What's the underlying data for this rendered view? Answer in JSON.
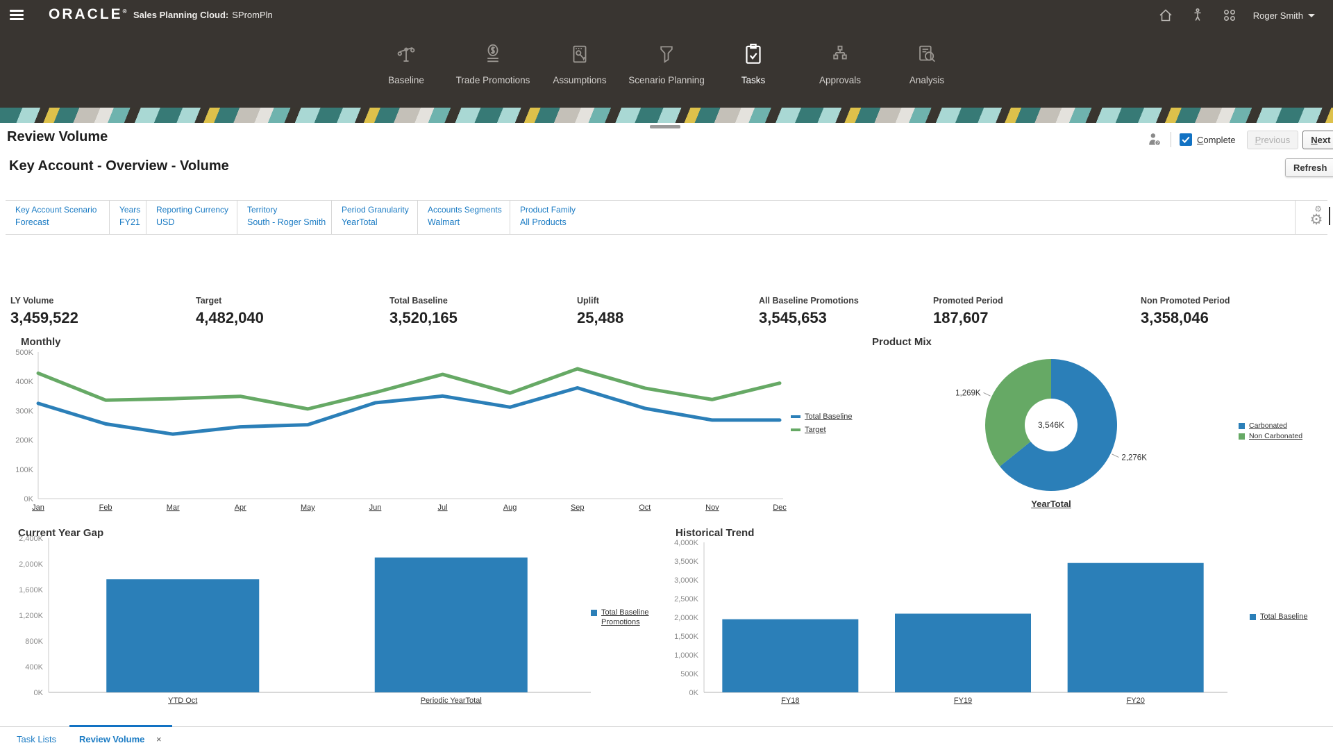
{
  "topbar": {
    "brand": "ORACLE",
    "brand_mark": "®",
    "title_bold": "Sales Planning Cloud:",
    "title_app": "SPromPln",
    "user": "Roger Smith"
  },
  "nav": {
    "items": [
      {
        "label": "Baseline",
        "icon": "baseline-icon",
        "active": false
      },
      {
        "label": "Trade Promotions",
        "icon": "trade-promotions-icon",
        "active": false
      },
      {
        "label": "Assumptions",
        "icon": "assumptions-icon",
        "active": false
      },
      {
        "label": "Scenario Planning",
        "icon": "scenario-planning-icon",
        "active": false
      },
      {
        "label": "Tasks",
        "icon": "tasks-icon",
        "active": true
      },
      {
        "label": "Approvals",
        "icon": "approvals-icon",
        "active": false
      },
      {
        "label": "Analysis",
        "icon": "analysis-icon",
        "active": false
      }
    ]
  },
  "header": {
    "title": "Review Volume",
    "complete_label": "Complete",
    "complete_checked": true,
    "previous_label": "Previous",
    "next_label": "Next"
  },
  "subheader": {
    "title": "Key Account - Overview - Volume",
    "refresh_label": "Refresh"
  },
  "pov": {
    "filters": [
      {
        "label": "Key Account Scenario",
        "value": "Forecast"
      },
      {
        "label": "Years",
        "value": "FY21"
      },
      {
        "label": "Reporting Currency",
        "value": "USD"
      },
      {
        "label": "Territory",
        "value": "South - Roger Smith"
      },
      {
        "label": "Period Granularity",
        "value": "YearTotal"
      },
      {
        "label": "Accounts Segments",
        "value": "Walmart"
      },
      {
        "label": "Product Family",
        "value": "All Products"
      }
    ],
    "gear_icon": "settings-gear-icon"
  },
  "kpis": [
    {
      "label": "LY Volume",
      "value": "3,459,522"
    },
    {
      "label": "Target",
      "value": "4,482,040"
    },
    {
      "label": "Total Baseline",
      "value": "3,520,165"
    },
    {
      "label": "Uplift",
      "value": "25,488"
    },
    {
      "label": "All Baseline Promotions",
      "value": "3,545,653"
    },
    {
      "label": "Promoted Period",
      "value": "187,607"
    },
    {
      "label": "Non Promoted Period",
      "value": "3,358,046"
    }
  ],
  "chart_data": [
    {
      "id": "monthly",
      "type": "line",
      "title": "Monthly",
      "categories": [
        "Jan",
        "Feb",
        "Mar",
        "Apr",
        "May",
        "Jun",
        "Jul",
        "Aug",
        "Sep",
        "Oct",
        "Nov",
        "Dec"
      ],
      "series": [
        {
          "name": "Total Baseline",
          "color": "#2b7fb8",
          "values": [
            325,
            255,
            220,
            245,
            252,
            327,
            350,
            312,
            378,
            308,
            268,
            268
          ]
        },
        {
          "name": "Target",
          "color": "#66a965",
          "values": [
            428,
            336,
            341,
            349,
            306,
            362,
            424,
            360,
            443,
            377,
            338,
            394
          ]
        }
      ],
      "unit": "K",
      "ylim": [
        0,
        500
      ],
      "yticks": [
        0,
        100,
        200,
        300,
        400,
        500
      ],
      "grid": false,
      "legend_position": "right"
    },
    {
      "id": "product-mix",
      "type": "pie",
      "donut": true,
      "title": "Product Mix",
      "slices": [
        {
          "name": "Carbonated",
          "value": 2276,
          "label": "2,276K",
          "color": "#2b7fb8"
        },
        {
          "name": "Non Carbonated",
          "value": 1269,
          "label": "1,269K",
          "color": "#66a965"
        }
      ],
      "center_label": "3,546K",
      "footer_label": "YearTotal",
      "unit": "K",
      "legend_position": "right"
    },
    {
      "id": "current-year-gap",
      "type": "bar",
      "title": "Current Year Gap",
      "categories": [
        "YTD Oct",
        "Periodic YearTotal"
      ],
      "series": [
        {
          "name": "Total Baseline Promotions",
          "color": "#2b7fb8",
          "values": [
            1760,
            2100
          ]
        }
      ],
      "unit": "K",
      "ylim": [
        0,
        2400
      ],
      "yticks": [
        0,
        400,
        800,
        1200,
        1600,
        2000,
        2400
      ],
      "grid": false,
      "legend_position": "right"
    },
    {
      "id": "historical-trend",
      "type": "bar",
      "title": "Historical Trend",
      "categories": [
        "FY18",
        "FY19",
        "FY20"
      ],
      "series": [
        {
          "name": "Total Baseline",
          "color": "#2b7fb8",
          "values": [
            1950,
            2100,
            3450
          ]
        }
      ],
      "unit": "K",
      "ylim": [
        0,
        4000
      ],
      "yticks": [
        0,
        500,
        1000,
        1500,
        2000,
        2500,
        3000,
        3500,
        4000
      ],
      "grid": false,
      "legend_position": "right"
    }
  ],
  "footer_tabs": {
    "items": [
      {
        "label": "Task Lists",
        "active": false
      },
      {
        "label": "Review Volume",
        "active": true,
        "close": "×"
      }
    ]
  }
}
